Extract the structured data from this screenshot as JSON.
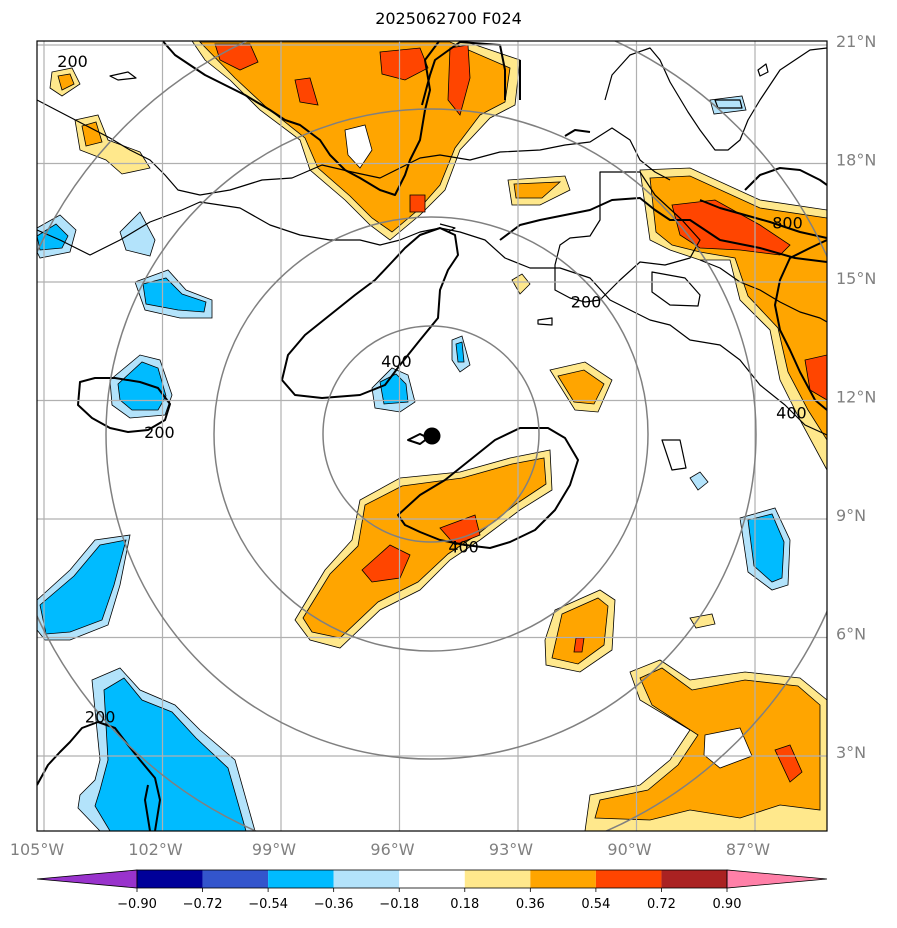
{
  "title": "2025062700 F024",
  "map": {
    "lon_range": [
      -105.0,
      -85.0
    ],
    "lat_range": [
      1.0,
      21.0
    ],
    "storm_center": {
      "lon": -95.0,
      "lat": 11.1
    },
    "range_ring_count": 4,
    "lat_labels": [
      "21°N",
      "18°N",
      "15°N",
      "12°N",
      "9°N",
      "6°N",
      "3°N"
    ],
    "lon_labels": [
      "105°W",
      "102°W",
      "99°W",
      "96°W",
      "93°W",
      "90°W",
      "87°W"
    ],
    "contour_labels": [
      {
        "text": "200",
        "lon": -104.1,
        "lat": 20.5
      },
      {
        "text": "200",
        "lon": -101.9,
        "lat": 11.1
      },
      {
        "text": "200",
        "lon": -103.4,
        "lat": 3.9
      },
      {
        "text": "200",
        "lon": -91.1,
        "lat": 14.4
      },
      {
        "text": "400",
        "lon": -95.9,
        "lat": 12.9
      },
      {
        "text": "400",
        "lon": -94.2,
        "lat": 8.2
      },
      {
        "text": "400",
        "lon": -85.9,
        "lat": 11.6
      },
      {
        "text": "800",
        "lon": -86.0,
        "lat": 16.4
      }
    ]
  },
  "colorbar": {
    "ticks": [
      "−0.90",
      "−0.72",
      "−0.54",
      "−0.36",
      "−0.18",
      "0.18",
      "0.36",
      "0.54",
      "0.72",
      "0.90"
    ],
    "colors": [
      "#9933cc",
      "#000099",
      "#3355cc",
      "#00bbff",
      "#b3e3fb",
      "#ffffff",
      "#ffe88c",
      "#ffa500",
      "#ff4500",
      "#aa2222",
      "#ff80a8"
    ]
  }
}
